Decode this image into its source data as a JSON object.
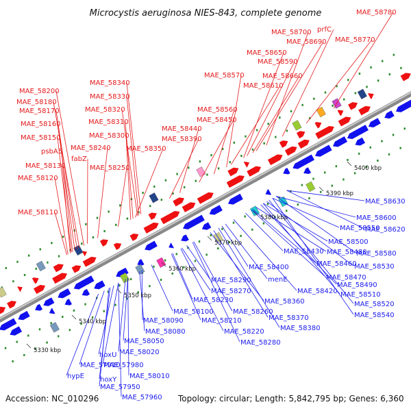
{
  "title": "Microcystis aeruginosa NIES-843, complete genome",
  "footer": {
    "accession": "Accession: NC_010296",
    "summary": "Topology: circular; Length: 5,842,795 bp; Genes: 6,360"
  },
  "colors": {
    "forward_label": "#e41a1c",
    "reverse_label": "#1a1aee",
    "forward_gene": "#ee1111",
    "reverse_gene": "#1111ee",
    "backbone": "#888888",
    "tick_dots": "#2a8a2a"
  },
  "scale_ticks": [
    "5330 kbp",
    "5340 kbp",
    "5350 kbp",
    "5360 kbp",
    "5370 kbp",
    "5380 kbp",
    "5390 kbp",
    "5400 kbp"
  ],
  "forward_labels": [
    "MAE_58780",
    "MAE_58700",
    "prfC",
    "MAE_58690",
    "MAE_58770",
    "MAE_58650",
    "MAE_58590",
    "MAE_58660",
    "MAE_58570",
    "MAE_58610",
    "MAE_58340",
    "MAE_58200",
    "MAE_58330",
    "MAE_58180",
    "MAE_58320",
    "MAE_58170",
    "MAE_58560",
    "MAE_58310",
    "MAE_58450",
    "MAE_58160",
    "MAE_58440",
    "MAE_58300",
    "MAE_58150",
    "MAE_58390",
    "MAE_58240",
    "MAE_58350",
    "psbA5",
    "fabZ",
    "MAE_58130",
    "MAE_58250",
    "MAE_58120",
    "MAE_58110"
  ],
  "reverse_labels": [
    "MAE_58630",
    "MAE_58600",
    "MAE_58550",
    "MAE_58620",
    "MAE_58500",
    "MAE_58580",
    "MAE_58430",
    "MAE_58480",
    "MAE_58400",
    "MAE_58460",
    "MAE_58530",
    "menE",
    "MAE_58470",
    "MAE_58290",
    "MAE_58420",
    "MAE_58490",
    "MAE_58270",
    "MAE_58510",
    "MAE_58360",
    "MAE_58230",
    "MAE_58520",
    "MAE_58100",
    "MAE_58260",
    "MAE_58540",
    "MAE_58090",
    "MAE_58210",
    "MAE_58370",
    "MAE_58080",
    "MAE_58220",
    "MAE_58380",
    "MAE_58050",
    "MAE_58280",
    "hoxU",
    "MAE_58020",
    "MAE_57910",
    "MAE_57980",
    "hypE",
    "hoxY",
    "MAE_58010",
    "MAE_57950",
    "MAE_57960"
  ]
}
